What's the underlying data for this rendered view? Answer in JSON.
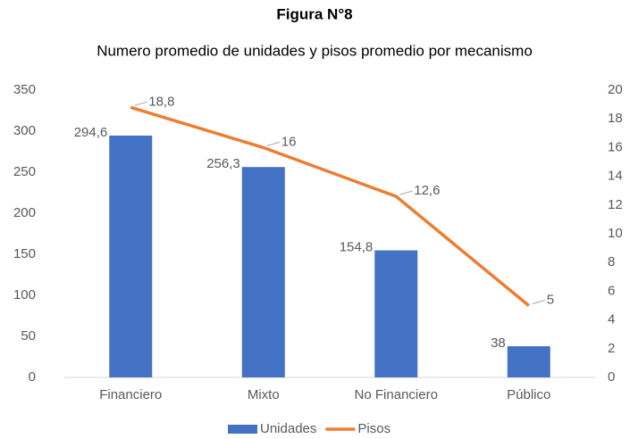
{
  "chart_data": {
    "type": "bar",
    "title": "Figura N°8",
    "subtitle": "Numero promedio de unidades y pisos promedio por mecanismo",
    "categories": [
      "Financiero",
      "Mixto",
      "No Financiero",
      "Público"
    ],
    "series": [
      {
        "name": "Unidades",
        "type": "bar",
        "color": "#4472c4",
        "values": [
          294.6,
          256.3,
          154.8,
          38
        ],
        "value_labels": [
          "294,6",
          "256,3",
          "154,8",
          "38"
        ]
      },
      {
        "name": "Pisos",
        "type": "line",
        "axis": "y2",
        "color": "#ed7d31",
        "values": [
          18.8,
          16,
          12.6,
          5
        ],
        "value_labels": [
          "18,8",
          "16",
          "12,6",
          "5"
        ]
      }
    ],
    "ylim": [
      0,
      350
    ],
    "yticks": [
      0,
      50,
      100,
      150,
      200,
      250,
      300,
      350
    ],
    "y2lim": [
      0,
      20
    ],
    "y2ticks": [
      0,
      2,
      4,
      6,
      8,
      10,
      12,
      14,
      16,
      18,
      20
    ],
    "grid": false,
    "legend": "bottom"
  }
}
